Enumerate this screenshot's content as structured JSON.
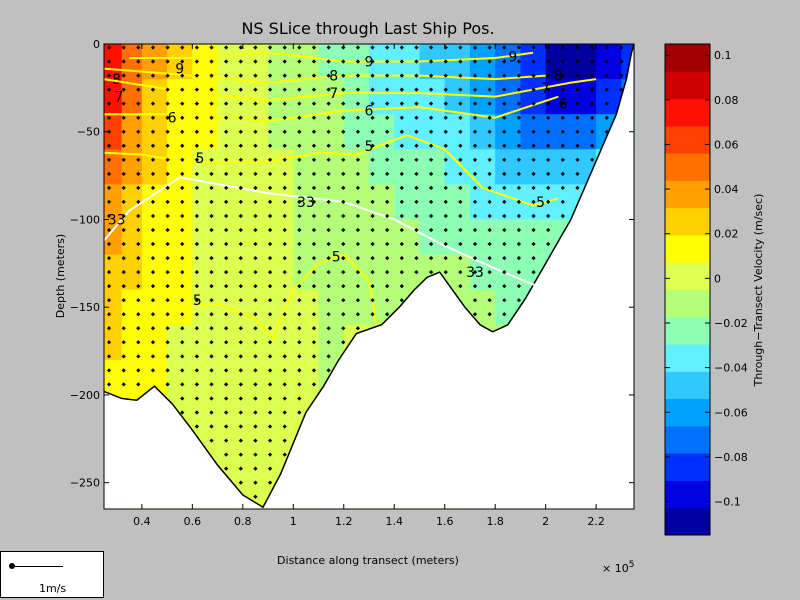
{
  "chart_data": {
    "type": "heatmap",
    "title": "NS SLice through Last Ship Pos.",
    "xlabel": "Distance along transect (meters)",
    "ylabel": "Depth (meters)",
    "x_multiplier_label": "× 10",
    "x_multiplier_exponent": "5",
    "xlim": [
      0.25,
      2.35
    ],
    "ylim": [
      -265,
      0
    ],
    "x_ticks": [
      {
        "value": 0.4,
        "label": "0.4"
      },
      {
        "value": 0.6,
        "label": "0.6"
      },
      {
        "value": 0.8,
        "label": "0.8"
      },
      {
        "value": 1.0,
        "label": "1"
      },
      {
        "value": 1.2,
        "label": "1.2"
      },
      {
        "value": 1.4,
        "label": "1.4"
      },
      {
        "value": 1.6,
        "label": "1.6"
      },
      {
        "value": 1.8,
        "label": "1.8"
      },
      {
        "value": 2.0,
        "label": "2"
      },
      {
        "value": 2.2,
        "label": "2.2"
      }
    ],
    "y_ticks": [
      {
        "value": 0,
        "label": "0"
      },
      {
        "value": -50,
        "label": "−50"
      },
      {
        "value": -100,
        "label": "−100"
      },
      {
        "value": -150,
        "label": "−150"
      },
      {
        "value": -200,
        "label": "−200"
      },
      {
        "value": -250,
        "label": "−250"
      }
    ],
    "bottom_profile": [
      [
        0.25,
        -198
      ],
      [
        0.32,
        -202
      ],
      [
        0.38,
        -203
      ],
      [
        0.45,
        -195
      ],
      [
        0.52,
        -205
      ],
      [
        0.6,
        -220
      ],
      [
        0.7,
        -240
      ],
      [
        0.8,
        -257
      ],
      [
        0.88,
        -264
      ],
      [
        0.95,
        -245
      ],
      [
        1.05,
        -210
      ],
      [
        1.12,
        -195
      ],
      [
        1.18,
        -180
      ],
      [
        1.25,
        -165
      ],
      [
        1.35,
        -160
      ],
      [
        1.42,
        -150
      ],
      [
        1.48,
        -140
      ],
      [
        1.53,
        -133
      ],
      [
        1.58,
        -130
      ],
      [
        1.62,
        -138
      ],
      [
        1.68,
        -150
      ],
      [
        1.74,
        -160
      ],
      [
        1.79,
        -164
      ],
      [
        1.85,
        -160
      ],
      [
        1.92,
        -145
      ],
      [
        2.0,
        -125
      ],
      [
        2.06,
        -110
      ],
      [
        2.1,
        -100
      ],
      [
        2.16,
        -80
      ],
      [
        2.22,
        -60
      ],
      [
        2.28,
        -40
      ],
      [
        2.32,
        -20
      ],
      [
        2.34,
        -5
      ],
      [
        2.35,
        0
      ]
    ],
    "colorbar": {
      "label": "Through−Transect Velocity (m/sec)",
      "range": [
        -0.115,
        0.105
      ],
      "ticks": [
        {
          "value": 0.1,
          "label": "0.1"
        },
        {
          "value": 0.08,
          "label": "0.08"
        },
        {
          "value": 0.06,
          "label": "0.06"
        },
        {
          "value": 0.04,
          "label": "0.04"
        },
        {
          "value": 0.02,
          "label": "0.02"
        },
        {
          "value": 0,
          "label": "0"
        },
        {
          "value": -0.02,
          "label": "−0.02"
        },
        {
          "value": -0.04,
          "label": "−0.04"
        },
        {
          "value": -0.06,
          "label": "−0.06"
        },
        {
          "value": -0.08,
          "label": "−0.08"
        },
        {
          "value": -0.1,
          "label": "−0.1"
        }
      ],
      "colors": [
        "#0000a0",
        "#0000e0",
        "#0030ff",
        "#0070ff",
        "#00a0ff",
        "#30c8ff",
        "#60f0ff",
        "#8cffb4",
        "#b4ff78",
        "#dcff50",
        "#ffff00",
        "#ffd000",
        "#ffa000",
        "#ff7000",
        "#ff4000",
        "#ff1000",
        "#d00000",
        "#a00000"
      ]
    },
    "velocity_field": {
      "x": [
        0.25,
        0.32,
        0.4,
        0.5,
        0.6,
        0.7,
        0.8,
        0.9,
        1.0,
        1.1,
        1.2,
        1.3,
        1.4,
        1.5,
        1.6,
        1.7,
        1.8,
        1.9,
        2.0,
        2.1,
        2.2,
        2.3,
        2.35
      ],
      "depth": [
        0,
        -20,
        -40,
        -60,
        -80,
        -100,
        -120,
        -140,
        -160,
        -180,
        -200,
        -220,
        -240,
        -265
      ],
      "values": [
        [
          0.09,
          0.07,
          0.05,
          0.03,
          0.02,
          0.01,
          0.0,
          0.0,
          -0.01,
          -0.02,
          -0.02,
          -0.03,
          -0.04,
          -0.04,
          -0.05,
          -0.06,
          -0.07,
          -0.08,
          -0.1,
          -0.11,
          -0.11,
          -0.1,
          -0.09
        ],
        [
          0.09,
          0.06,
          0.04,
          0.025,
          0.015,
          0.01,
          0.0,
          -0.005,
          -0.01,
          -0.015,
          -0.02,
          -0.03,
          -0.035,
          -0.04,
          -0.045,
          -0.055,
          -0.065,
          -0.08,
          -0.095,
          -0.11,
          -0.1,
          -0.09,
          -0.08
        ],
        [
          0.08,
          0.055,
          0.035,
          0.02,
          0.01,
          0.005,
          0.0,
          -0.005,
          -0.01,
          -0.01,
          -0.02,
          -0.025,
          -0.03,
          -0.035,
          -0.04,
          -0.045,
          -0.055,
          -0.07,
          -0.085,
          -0.09,
          -0.08,
          -0.07,
          -0.06
        ],
        [
          0.06,
          0.045,
          0.03,
          0.015,
          0.01,
          0.005,
          0.0,
          -0.005,
          -0.005,
          -0.01,
          -0.015,
          -0.02,
          -0.025,
          -0.03,
          -0.03,
          -0.035,
          -0.045,
          -0.055,
          -0.06,
          -0.06,
          -0.05,
          -0.04,
          -0.03
        ],
        [
          0.05,
          0.04,
          0.025,
          0.015,
          0.005,
          0.0,
          0.0,
          0.0,
          -0.005,
          -0.01,
          -0.01,
          -0.015,
          -0.02,
          -0.025,
          -0.025,
          -0.03,
          -0.035,
          -0.04,
          -0.04,
          -0.04,
          -0.035,
          -0.03,
          -0.02
        ],
        [
          0.04,
          0.035,
          0.02,
          0.01,
          0.005,
          0.0,
          0.0,
          0.005,
          -0.005,
          -0.01,
          -0.01,
          -0.01,
          -0.015,
          -0.02,
          -0.02,
          -0.025,
          -0.03,
          -0.03,
          -0.03,
          -0.03,
          -0.025,
          -0.02,
          -0.015
        ],
        [
          0.035,
          0.03,
          0.02,
          0.01,
          0.005,
          0.0,
          0.0,
          0.005,
          -0.005,
          -0.01,
          -0.005,
          -0.01,
          -0.01,
          -0.015,
          -0.015,
          -0.02,
          -0.025,
          -0.025,
          -0.025,
          -0.02,
          -0.02,
          -0.015,
          -0.01
        ],
        [
          0.03,
          0.025,
          0.015,
          0.01,
          0.005,
          0.0,
          0.005,
          0.005,
          0.0,
          -0.01,
          -0.005,
          -0.01,
          -0.01,
          -0.01,
          -0.01,
          -0.015,
          -0.02,
          -0.02,
          -0.02,
          -0.015,
          -0.015,
          -0.01,
          -0.01
        ],
        [
          0.025,
          0.02,
          0.015,
          0.01,
          0.005,
          0.0,
          0.005,
          0.005,
          0.0,
          -0.01,
          -0.005,
          -0.005,
          -0.01,
          -0.01,
          -0.01,
          -0.01,
          -0.015,
          -0.015,
          -0.015,
          -0.01,
          -0.01,
          -0.01,
          -0.01
        ],
        [
          0.02,
          0.015,
          0.01,
          0.005,
          0.005,
          0.0,
          0.005,
          0.005,
          0.0,
          -0.01,
          -0.005,
          -0.005,
          -0.005,
          -0.01,
          -0.01,
          -0.01,
          -0.01,
          -0.01,
          -0.01,
          -0.01,
          -0.01,
          -0.01,
          -0.01
        ],
        [
          0.015,
          0.01,
          0.01,
          0.005,
          0.0,
          0.0,
          0.005,
          0.005,
          0.0,
          -0.01,
          -0.005,
          -0.005,
          -0.005,
          -0.005,
          -0.01,
          -0.01,
          -0.01,
          -0.01,
          -0.01,
          -0.01,
          -0.01,
          -0.01,
          -0.01
        ],
        [
          0.01,
          0.01,
          0.005,
          0.005,
          0.0,
          0.0,
          0.005,
          0.005,
          0.0,
          -0.01,
          -0.005,
          -0.005,
          -0.005,
          -0.005,
          -0.005,
          -0.01,
          -0.01,
          -0.01,
          -0.01,
          -0.01,
          -0.01,
          -0.01,
          -0.01
        ],
        [
          0.01,
          0.005,
          0.005,
          0.0,
          0.0,
          0.0,
          0.005,
          0.005,
          0.0,
          -0.01,
          -0.005,
          -0.005,
          -0.005,
          -0.005,
          -0.005,
          -0.005,
          -0.01,
          -0.01,
          -0.01,
          -0.01,
          -0.01,
          -0.01,
          -0.01
        ],
        [
          0.01,
          0.005,
          0.005,
          0.0,
          0.0,
          0.0,
          0.005,
          0.005,
          0.0,
          -0.01,
          -0.005,
          -0.005,
          -0.005,
          -0.005,
          -0.005,
          -0.005,
          -0.01,
          -0.01,
          -0.01,
          -0.01,
          -0.01,
          -0.01,
          -0.01
        ]
      ]
    },
    "contours": [
      {
        "label": "9",
        "color": "#ffff00",
        "points": [
          [
            0.35,
            -8
          ],
          [
            0.6,
            -8
          ],
          [
            0.9,
            -5
          ],
          [
            1.2,
            -10
          ],
          [
            1.5,
            -10
          ],
          [
            1.8,
            -8
          ],
          [
            1.95,
            -5
          ]
        ],
        "labels_at": [
          [
            0.55,
            -14
          ],
          [
            1.3,
            -10
          ],
          [
            1.87,
            -7
          ]
        ]
      },
      {
        "label": "8",
        "color": "#ffff00",
        "points": [
          [
            0.25,
            -14
          ],
          [
            0.6,
            -18
          ],
          [
            0.9,
            -22
          ],
          [
            1.2,
            -18
          ],
          [
            1.5,
            -18
          ],
          [
            1.8,
            -20
          ],
          [
            2.0,
            -18
          ]
        ],
        "labels_at": [
          [
            0.3,
            -20
          ],
          [
            1.16,
            -18
          ],
          [
            2.05,
            -18
          ]
        ]
      },
      {
        "label": "7",
        "color": "#ffff00",
        "points": [
          [
            0.25,
            -20
          ],
          [
            0.6,
            -28
          ],
          [
            0.9,
            -32
          ],
          [
            1.2,
            -28
          ],
          [
            1.5,
            -28
          ],
          [
            1.8,
            -30
          ],
          [
            2.1,
            -22
          ],
          [
            2.2,
            -20
          ]
        ],
        "labels_at": [
          [
            0.31,
            -30
          ],
          [
            1.16,
            -28
          ],
          [
            2.0,
            -25
          ]
        ]
      },
      {
        "label": "6",
        "color": "#ffff00",
        "points": [
          [
            0.25,
            -40
          ],
          [
            0.5,
            -40
          ],
          [
            0.7,
            -42
          ],
          [
            0.9,
            -44
          ],
          [
            1.2,
            -38
          ],
          [
            1.5,
            -36
          ],
          [
            1.8,
            -42
          ],
          [
            2.05,
            -30
          ]
        ],
        "labels_at": [
          [
            0.52,
            -42
          ],
          [
            1.3,
            -38
          ],
          [
            2.07,
            -34
          ]
        ]
      },
      {
        "label": "5",
        "color": "#ffff00",
        "points": [
          [
            0.25,
            -62
          ],
          [
            0.4,
            -63
          ],
          [
            0.6,
            -68
          ],
          [
            0.9,
            -67
          ],
          [
            1.1,
            -62
          ],
          [
            1.25,
            -63
          ],
          [
            1.45,
            -52
          ],
          [
            1.6,
            -60
          ],
          [
            1.75,
            -82
          ],
          [
            1.95,
            -92
          ],
          [
            2.05,
            -88
          ]
        ],
        "labels_at": [
          [
            0.63,
            -65
          ],
          [
            1.3,
            -58
          ],
          [
            1.98,
            -90
          ]
        ]
      },
      {
        "label": "33",
        "color": "#ffffff",
        "points": [
          [
            0.25,
            -112
          ],
          [
            0.35,
            -95
          ],
          [
            0.55,
            -76
          ],
          [
            0.9,
            -85
          ],
          [
            1.2,
            -90
          ],
          [
            1.4,
            -100
          ],
          [
            1.6,
            -115
          ],
          [
            1.8,
            -128
          ],
          [
            2.0,
            -140
          ]
        ],
        "labels_at": [
          [
            0.3,
            -100
          ],
          [
            1.05,
            -90
          ],
          [
            1.72,
            -130
          ]
        ]
      },
      {
        "label": "5",
        "color": "#ffff00",
        "points": [
          [
            0.4,
            -150
          ],
          [
            0.7,
            -148
          ],
          [
            0.85,
            -157
          ],
          [
            0.92,
            -168
          ],
          [
            1.0,
            -140
          ],
          [
            1.1,
            -125
          ],
          [
            1.2,
            -120
          ],
          [
            1.3,
            -135
          ],
          [
            1.33,
            -160
          ]
        ],
        "labels_at": [
          [
            0.62,
            -146
          ],
          [
            1.17,
            -121
          ]
        ]
      }
    ]
  },
  "legend_box": {
    "label": "1m/s"
  }
}
